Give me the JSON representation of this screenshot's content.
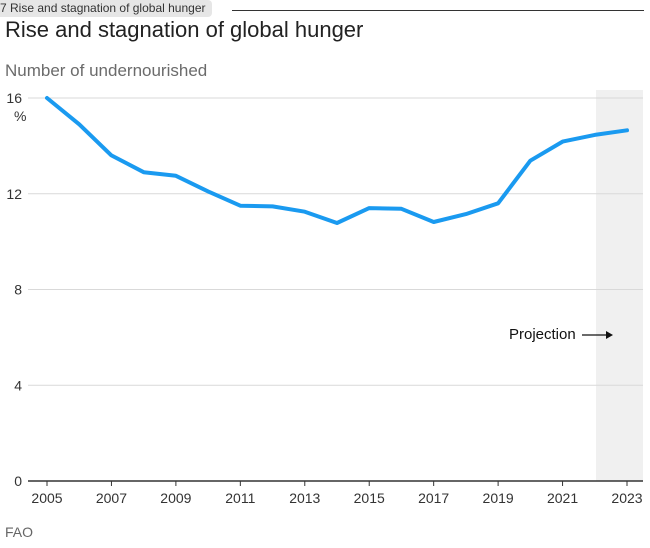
{
  "header": {
    "tab_label": "7 Rise and stagnation of global hunger"
  },
  "chart_data": {
    "type": "line",
    "title": "Rise and stagnation of global hunger",
    "subtitle": "Number of undernourished",
    "unit": "%",
    "source": "FAO",
    "x": [
      2005,
      2006,
      2007,
      2008,
      2009,
      2010,
      2011,
      2012,
      2013,
      2014,
      2015,
      2016,
      2017,
      2018,
      2019,
      2020,
      2021,
      2022,
      2023
    ],
    "series": [
      {
        "values": [
          16.0,
          14.9,
          13.6,
          12.9,
          12.75,
          12.1,
          11.5,
          11.47,
          11.25,
          10.78,
          11.4,
          11.37,
          10.82,
          11.15,
          11.6,
          13.38,
          14.18,
          14.46,
          14.65
        ]
      }
    ],
    "x_ticks": [
      "2005",
      "2007",
      "2009",
      "2011",
      "2013",
      "2015",
      "2017",
      "2019",
      "2021",
      "2023"
    ],
    "y_ticks": [
      "0",
      "4",
      "8",
      "12",
      "16"
    ],
    "xlim": [
      2005,
      2023.5
    ],
    "ylim": [
      0,
      16
    ],
    "grid": true,
    "line_color": "#1a9af0",
    "projection": {
      "label": "Projection",
      "start": 2022,
      "end": 2023.5,
      "shade_color": "#f0f0f0"
    }
  }
}
